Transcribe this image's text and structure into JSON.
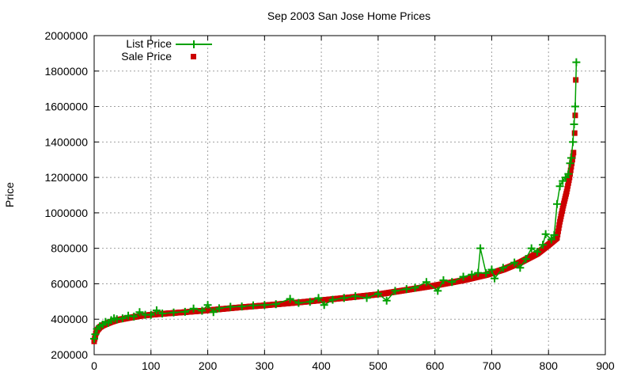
{
  "chart_data": {
    "type": "scatter",
    "title": "Sep 2003 San Jose Home Prices",
    "xlabel": "",
    "ylabel": "Price",
    "xlim": [
      0,
      900
    ],
    "ylim": [
      200000,
      2000000
    ],
    "x_ticks": [
      0,
      100,
      200,
      300,
      400,
      500,
      600,
      700,
      800,
      900
    ],
    "y_ticks": [
      200000,
      400000,
      600000,
      800000,
      1000000,
      1200000,
      1400000,
      1600000,
      1800000,
      2000000
    ],
    "grid": true,
    "legend_position": "top-left",
    "series": [
      {
        "name": "List Price",
        "style": "line+plus",
        "color": "#00a000",
        "points": [
          [
            0,
            290000
          ],
          [
            2,
            315000
          ],
          [
            5,
            345000
          ],
          [
            10,
            360000
          ],
          [
            15,
            370000
          ],
          [
            20,
            385000
          ],
          [
            25,
            380000
          ],
          [
            30,
            395000
          ],
          [
            35,
            405000
          ],
          [
            40,
            400000
          ],
          [
            50,
            405000
          ],
          [
            60,
            420000
          ],
          [
            70,
            415000
          ],
          [
            80,
            440000
          ],
          [
            90,
            425000
          ],
          [
            100,
            425000
          ],
          [
            110,
            450000
          ],
          [
            120,
            432000
          ],
          [
            140,
            438000
          ],
          [
            160,
            442000
          ],
          [
            175,
            460000
          ],
          [
            190,
            448000
          ],
          [
            200,
            480000
          ],
          [
            210,
            440000
          ],
          [
            220,
            462000
          ],
          [
            240,
            470000
          ],
          [
            260,
            472000
          ],
          [
            280,
            478000
          ],
          [
            300,
            480000
          ],
          [
            320,
            485000
          ],
          [
            345,
            515000
          ],
          [
            360,
            492000
          ],
          [
            380,
            498000
          ],
          [
            395,
            520000
          ],
          [
            405,
            480000
          ],
          [
            420,
            510000
          ],
          [
            440,
            520000
          ],
          [
            460,
            530000
          ],
          [
            480,
            520000
          ],
          [
            500,
            545000
          ],
          [
            515,
            505000
          ],
          [
            530,
            560000
          ],
          [
            550,
            570000
          ],
          [
            565,
            578000
          ],
          [
            585,
            610000
          ],
          [
            605,
            560000
          ],
          [
            615,
            620000
          ],
          [
            630,
            610000
          ],
          [
            650,
            640000
          ],
          [
            665,
            652000
          ],
          [
            676,
            662000
          ],
          [
            680,
            800000
          ],
          [
            690,
            660000
          ],
          [
            700,
            680000
          ],
          [
            705,
            630000
          ],
          [
            720,
            690000
          ],
          [
            740,
            720000
          ],
          [
            750,
            690000
          ],
          [
            760,
            740000
          ],
          [
            770,
            800000
          ],
          [
            780,
            780000
          ],
          [
            790,
            820000
          ],
          [
            795,
            880000
          ],
          [
            805,
            850000
          ],
          [
            810,
            875000
          ],
          [
            815,
            1050000
          ],
          [
            820,
            1150000
          ],
          [
            825,
            1180000
          ],
          [
            830,
            1200000
          ],
          [
            835,
            1220000
          ],
          [
            838,
            1280000
          ],
          [
            840,
            1310000
          ],
          [
            843,
            1400000
          ],
          [
            845,
            1500000
          ],
          [
            847,
            1600000
          ],
          [
            849,
            1850000
          ]
        ]
      },
      {
        "name": "Sale Price",
        "style": "squares",
        "color": "#cc0000",
        "curve": [
          [
            0,
            275000
          ],
          [
            1,
            290000
          ],
          [
            3,
            320000
          ],
          [
            6,
            340000
          ],
          [
            10,
            355000
          ],
          [
            15,
            365000
          ],
          [
            20,
            372000
          ],
          [
            30,
            385000
          ],
          [
            40,
            395000
          ],
          [
            60,
            407000
          ],
          [
            80,
            418000
          ],
          [
            100,
            425000
          ],
          [
            130,
            433000
          ],
          [
            160,
            440000
          ],
          [
            200,
            450000
          ],
          [
            250,
            465000
          ],
          [
            300,
            478000
          ],
          [
            350,
            492000
          ],
          [
            400,
            507000
          ],
          [
            450,
            523000
          ],
          [
            500,
            540000
          ],
          [
            550,
            565000
          ],
          [
            600,
            590000
          ],
          [
            650,
            620000
          ],
          [
            690,
            650000
          ],
          [
            720,
            680000
          ],
          [
            750,
            720000
          ],
          [
            780,
            770000
          ],
          [
            800,
            820000
          ],
          [
            815,
            860000
          ],
          [
            820,
            950000
          ],
          [
            826,
            1040000
          ],
          [
            832,
            1120000
          ],
          [
            837,
            1200000
          ],
          [
            841,
            1280000
          ],
          [
            844,
            1340000
          ]
        ],
        "outliers": [
          [
            846,
            1450000
          ],
          [
            847,
            1550000
          ],
          [
            848,
            1750000
          ]
        ]
      }
    ]
  }
}
